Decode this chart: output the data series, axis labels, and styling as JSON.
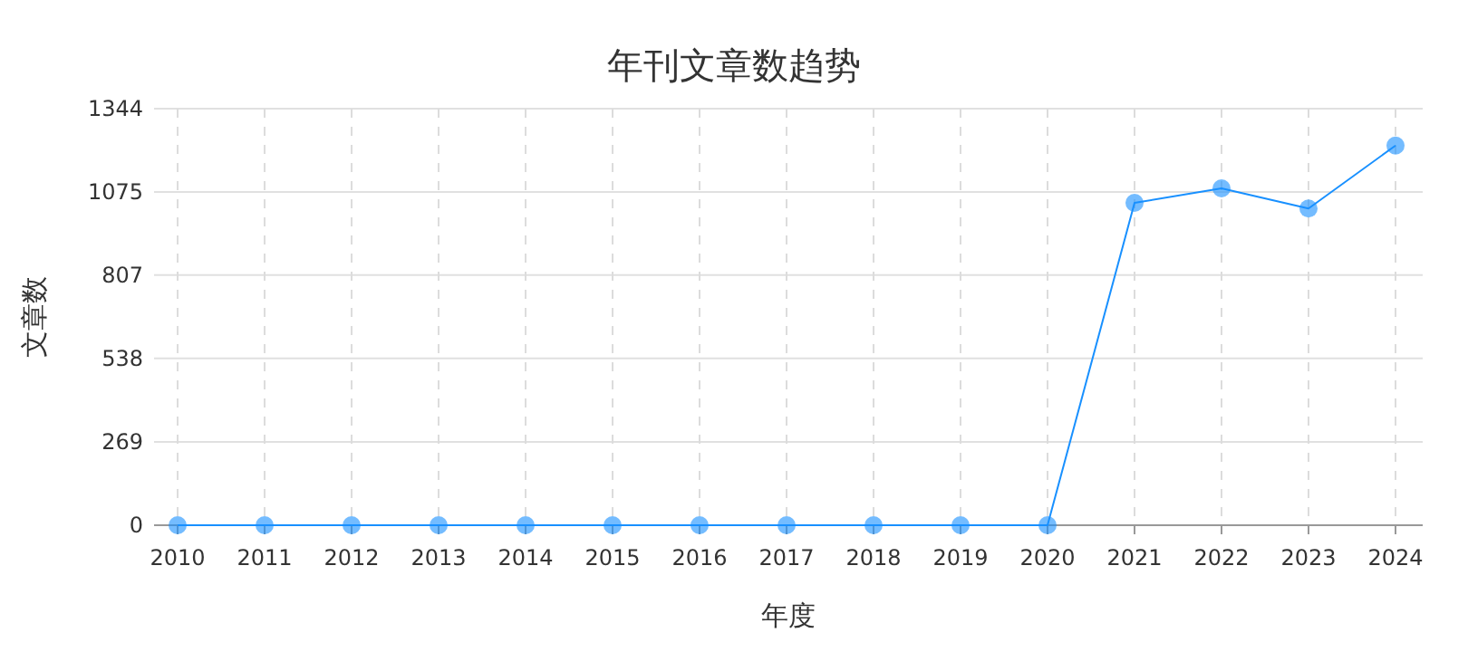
{
  "chart_data": {
    "type": "line",
    "title": "年刊文章数趋势",
    "xlabel": "年度",
    "ylabel": "文章数",
    "categories": [
      "2010",
      "2011",
      "2012",
      "2013",
      "2014",
      "2015",
      "2016",
      "2017",
      "2018",
      "2019",
      "2020",
      "2021",
      "2022",
      "2023",
      "2024"
    ],
    "series": [
      {
        "color": "#1890ff",
        "values": [
          0,
          0,
          0,
          0,
          0,
          0,
          0,
          0,
          0,
          0,
          0,
          1040,
          1087,
          1022,
          1225
        ]
      }
    ],
    "ylim": [
      0,
      1344
    ],
    "yticks": [
      0,
      269,
      538,
      807,
      1075,
      1344
    ],
    "grid": true,
    "marker": "circle",
    "line_style": "solid"
  }
}
